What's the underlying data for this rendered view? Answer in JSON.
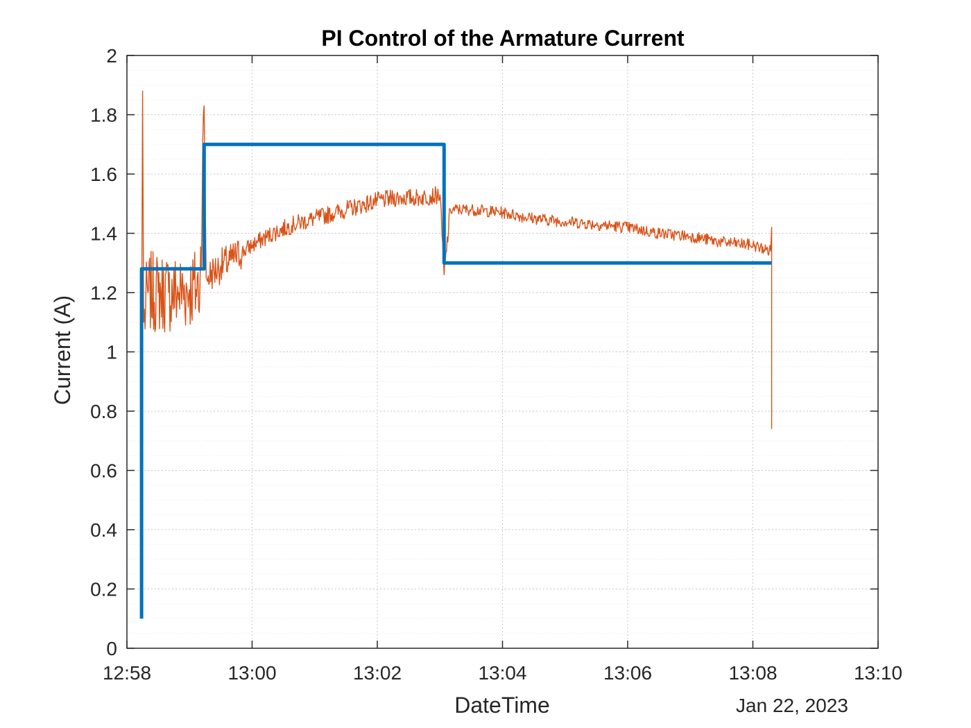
{
  "chart_data": {
    "type": "line",
    "title": "PI Control of the Armature Current",
    "xlabel": "DateTime",
    "ylabel": "Current (A)",
    "date_label": "Jan 22, 2023",
    "x_unit": "time (HH:MM, Jan 22, 2023)",
    "xlim": [
      "12:58",
      "13:10"
    ],
    "ylim": [
      0,
      2
    ],
    "x_ticks": [
      "12:58",
      "13:00",
      "13:02",
      "13:04",
      "13:06",
      "13:08",
      "13:10"
    ],
    "y_ticks": [
      "0",
      "0.2",
      "0.4",
      "0.6",
      "0.8",
      "1",
      "1.2",
      "1.4",
      "1.6",
      "1.8",
      "2"
    ],
    "grid": true,
    "minor_grid": true,
    "series": [
      {
        "color": "#0072BD",
        "style": "step",
        "points": [
          [
            "12:58:14",
            0.1
          ],
          [
            "12:58:14",
            1.28
          ],
          [
            "12:59:14",
            1.28
          ],
          [
            "12:59:14",
            1.7
          ],
          [
            "13:03:04",
            1.7
          ],
          [
            "13:03:04",
            1.3
          ],
          [
            "13:08:18",
            1.3
          ]
        ]
      },
      {
        "color": "#D95319",
        "style": "noisy",
        "points": [
          [
            "12:58:14",
            0.98
          ],
          [
            "12:58:15",
            1.88
          ],
          [
            "12:58:16",
            1.1
          ],
          [
            "12:58:20",
            1.2
          ],
          [
            "12:58:30",
            1.2
          ],
          [
            "12:58:40",
            1.2
          ],
          [
            "12:58:50",
            1.2
          ],
          [
            "12:59:00",
            1.21
          ],
          [
            "12:59:10",
            1.22
          ],
          [
            "12:59:14",
            1.83
          ],
          [
            "12:59:16",
            1.25
          ],
          [
            "12:59:30",
            1.29
          ],
          [
            "12:59:40",
            1.31
          ],
          [
            "13:00:00",
            1.36
          ],
          [
            "13:00:20",
            1.4
          ],
          [
            "13:00:40",
            1.43
          ],
          [
            "13:01:00",
            1.45
          ],
          [
            "13:01:20",
            1.47
          ],
          [
            "13:01:40",
            1.49
          ],
          [
            "13:02:00",
            1.51
          ],
          [
            "13:02:20",
            1.52
          ],
          [
            "13:02:40",
            1.52
          ],
          [
            "13:03:00",
            1.53
          ],
          [
            "13:03:04",
            1.26
          ],
          [
            "13:03:10",
            1.48
          ],
          [
            "13:03:30",
            1.48
          ],
          [
            "13:04:00",
            1.47
          ],
          [
            "13:04:30",
            1.45
          ],
          [
            "13:05:00",
            1.44
          ],
          [
            "13:05:30",
            1.43
          ],
          [
            "13:06:00",
            1.42
          ],
          [
            "13:06:30",
            1.4
          ],
          [
            "13:07:00",
            1.39
          ],
          [
            "13:07:30",
            1.37
          ],
          [
            "13:08:00",
            1.36
          ],
          [
            "13:08:17",
            1.34
          ],
          [
            "13:08:18",
            1.42
          ],
          [
            "13:08:18",
            0.74
          ]
        ]
      }
    ]
  }
}
